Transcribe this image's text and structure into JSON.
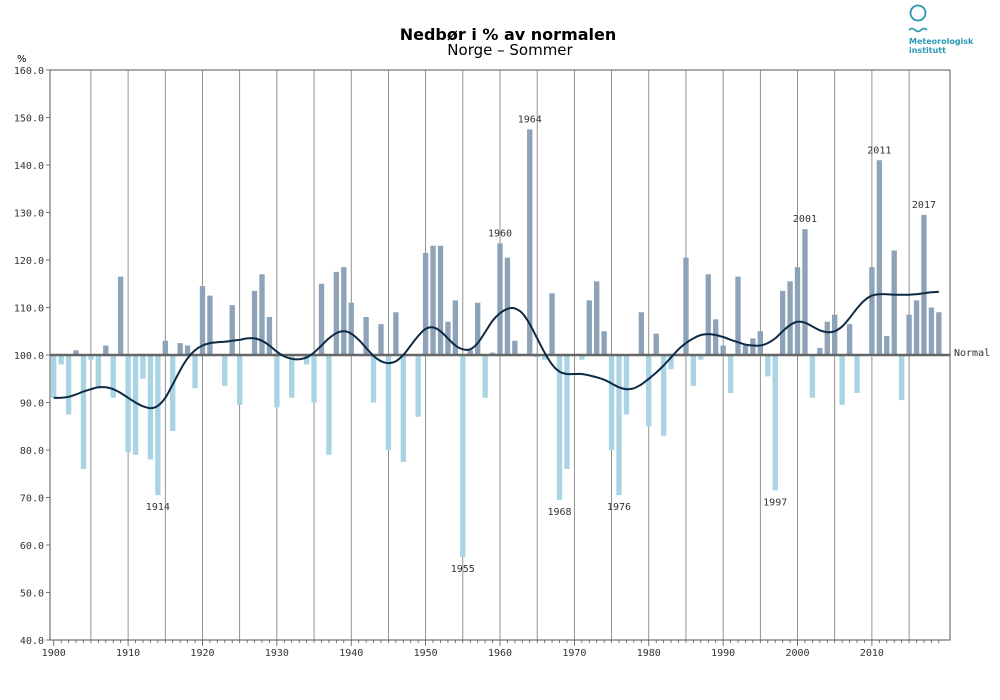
{
  "logo": {
    "line1": "Meteorologisk",
    "line2": "institutt",
    "color": "#2a98b5"
  },
  "chart_data": {
    "type": "bar",
    "title": "Nedbør i % av normalen",
    "subtitle": "Norge – Sommer",
    "ylabel": "%",
    "ylim": [
      40,
      160
    ],
    "yticks": [
      "40.0",
      "50.0",
      "60.0",
      "70.0",
      "80.0",
      "90.0",
      "100.0",
      "110.0",
      "120.0",
      "130.0",
      "140.0",
      "150.0",
      "160.0"
    ],
    "xticks": [
      "1900",
      "1910",
      "1920",
      "1930",
      "1940",
      "1950",
      "1960",
      "1970",
      "1980",
      "1990",
      "2000",
      "2010"
    ],
    "normal_label": "Normal",
    "baseline": 100,
    "colors": {
      "above": "#8fa3b8",
      "below": "#a9d4e4",
      "trend": "#0d2a45",
      "normal": "#666666"
    },
    "years": [
      1900,
      1901,
      1902,
      1903,
      1904,
      1905,
      1906,
      1907,
      1908,
      1909,
      1910,
      1911,
      1912,
      1913,
      1914,
      1915,
      1916,
      1917,
      1918,
      1919,
      1920,
      1921,
      1922,
      1923,
      1924,
      1925,
      1926,
      1927,
      1928,
      1929,
      1930,
      1931,
      1932,
      1933,
      1934,
      1935,
      1936,
      1937,
      1938,
      1939,
      1940,
      1941,
      1942,
      1943,
      1944,
      1945,
      1946,
      1947,
      1948,
      1949,
      1950,
      1951,
      1952,
      1953,
      1954,
      1955,
      1956,
      1957,
      1958,
      1959,
      1960,
      1961,
      1962,
      1963,
      1964,
      1965,
      1966,
      1967,
      1968,
      1969,
      1970,
      1971,
      1972,
      1973,
      1974,
      1975,
      1976,
      1977,
      1978,
      1979,
      1980,
      1981,
      1982,
      1983,
      1984,
      1985,
      1986,
      1987,
      1988,
      1989,
      1990,
      1991,
      1992,
      1993,
      1994,
      1995,
      1996,
      1997,
      1998,
      1999,
      2000,
      2001,
      2002,
      2003,
      2004,
      2005,
      2006,
      2007,
      2008,
      2009,
      2010,
      2011,
      2012,
      2013,
      2014,
      2015,
      2016,
      2017,
      2018,
      2019
    ],
    "values": [
      91,
      98,
      87.5,
      101,
      76,
      99,
      93,
      102,
      91,
      116.5,
      79.5,
      79,
      95,
      78,
      70.5,
      103,
      84,
      102.5,
      102,
      93,
      114.5,
      112.5,
      100,
      93.5,
      110.5,
      89.5,
      100,
      113.5,
      117,
      108,
      89,
      100,
      91,
      100,
      98,
      90,
      115,
      79,
      117.5,
      118.5,
      111,
      100,
      108,
      90,
      106.5,
      80,
      109,
      77.5,
      100,
      87,
      121.5,
      123,
      123,
      107,
      111.5,
      57.5,
      101,
      111,
      91,
      100.5,
      123.5,
      120.5,
      103,
      100,
      147.5,
      99.5,
      99,
      113,
      69.5,
      76,
      100,
      99,
      111.5,
      115.5,
      105,
      80,
      70.5,
      87.5,
      100,
      109,
      85,
      104.5,
      83,
      97,
      100,
      120.5,
      93.5,
      99,
      117,
      107.5,
      102,
      92,
      116.5,
      102,
      103.5,
      105,
      95.5,
      71.5,
      113.5,
      115.5,
      118.5,
      126.5,
      91,
      101.5,
      107,
      108.5,
      89.5,
      106.5,
      92,
      100,
      118.5,
      141,
      104,
      122,
      90.5,
      108.5,
      111.5,
      129.5,
      110,
      109
    ],
    "trend": [
      [
        1900,
        91
      ],
      [
        1901,
        91
      ],
      [
        1902,
        91.2
      ],
      [
        1903,
        91.7
      ],
      [
        1904,
        92.3
      ],
      [
        1905,
        92.8
      ],
      [
        1906,
        93.2
      ],
      [
        1907,
        93.2
      ],
      [
        1908,
        92.8
      ],
      [
        1909,
        92
      ],
      [
        1910,
        91
      ],
      [
        1911,
        90
      ],
      [
        1912,
        89.2
      ],
      [
        1913,
        88.8
      ],
      [
        1914,
        89.3
      ],
      [
        1915,
        91
      ],
      [
        1916,
        93.8
      ],
      [
        1917,
        96.8
      ],
      [
        1918,
        99.3
      ],
      [
        1919,
        101
      ],
      [
        1920,
        102
      ],
      [
        1921,
        102.5
      ],
      [
        1922,
        102.7
      ],
      [
        1923,
        102.8
      ],
      [
        1924,
        103
      ],
      [
        1925,
        103.2
      ],
      [
        1926,
        103.5
      ],
      [
        1927,
        103.5
      ],
      [
        1928,
        103
      ],
      [
        1929,
        102
      ],
      [
        1930,
        100.7
      ],
      [
        1931,
        99.7
      ],
      [
        1932,
        99.2
      ],
      [
        1933,
        99.1
      ],
      [
        1934,
        99.5
      ],
      [
        1935,
        100.5
      ],
      [
        1936,
        102
      ],
      [
        1937,
        103.5
      ],
      [
        1938,
        104.6
      ],
      [
        1939,
        105
      ],
      [
        1940,
        104.5
      ],
      [
        1941,
        103.2
      ],
      [
        1942,
        101.5
      ],
      [
        1943,
        99.8
      ],
      [
        1944,
        98.7
      ],
      [
        1945,
        98.3
      ],
      [
        1946,
        98.7
      ],
      [
        1947,
        100
      ],
      [
        1948,
        102
      ],
      [
        1949,
        104
      ],
      [
        1950,
        105.5
      ],
      [
        1951,
        105.8
      ],
      [
        1952,
        105
      ],
      [
        1953,
        103.5
      ],
      [
        1954,
        102
      ],
      [
        1955,
        101.2
      ],
      [
        1956,
        101.2
      ],
      [
        1957,
        102.5
      ],
      [
        1958,
        104.8
      ],
      [
        1959,
        107.2
      ],
      [
        1960,
        108.8
      ],
      [
        1961,
        109.7
      ],
      [
        1962,
        109.8
      ],
      [
        1963,
        108.8
      ],
      [
        1964,
        106.5
      ],
      [
        1965,
        103.5
      ],
      [
        1966,
        100.5
      ],
      [
        1967,
        98
      ],
      [
        1968,
        96.5
      ],
      [
        1969,
        96
      ],
      [
        1970,
        96
      ],
      [
        1971,
        96
      ],
      [
        1972,
        95.7
      ],
      [
        1973,
        95.3
      ],
      [
        1974,
        94.8
      ],
      [
        1975,
        94
      ],
      [
        1976,
        93.2
      ],
      [
        1977,
        92.8
      ],
      [
        1978,
        93
      ],
      [
        1979,
        93.8
      ],
      [
        1980,
        95
      ],
      [
        1981,
        96.3
      ],
      [
        1982,
        97.8
      ],
      [
        1983,
        99.5
      ],
      [
        1984,
        101.2
      ],
      [
        1985,
        102.5
      ],
      [
        1986,
        103.5
      ],
      [
        1987,
        104.2
      ],
      [
        1988,
        104.4
      ],
      [
        1989,
        104.2
      ],
      [
        1990,
        103.8
      ],
      [
        1991,
        103.2
      ],
      [
        1992,
        102.7
      ],
      [
        1993,
        102.2
      ],
      [
        1994,
        102
      ],
      [
        1995,
        102
      ],
      [
        1996,
        102.5
      ],
      [
        1997,
        103.5
      ],
      [
        1998,
        105
      ],
      [
        1999,
        106.3
      ],
      [
        2000,
        107
      ],
      [
        2001,
        106.8
      ],
      [
        2002,
        106
      ],
      [
        2003,
        105.2
      ],
      [
        2004,
        104.8
      ],
      [
        2005,
        105
      ],
      [
        2006,
        106
      ],
      [
        2007,
        107.8
      ],
      [
        2008,
        109.8
      ],
      [
        2009,
        111.5
      ],
      [
        2010,
        112.5
      ],
      [
        2011,
        112.8
      ],
      [
        2012,
        112.8
      ],
      [
        2013,
        112.7
      ],
      [
        2014,
        112.7
      ],
      [
        2015,
        112.7
      ],
      [
        2016,
        112.8
      ],
      [
        2017,
        113
      ],
      [
        2018,
        113.2
      ],
      [
        2019,
        113.3
      ]
    ],
    "annotations": [
      {
        "year": 1914,
        "label": "1914",
        "pos": "below"
      },
      {
        "year": 1955,
        "label": "1955",
        "pos": "below"
      },
      {
        "year": 1960,
        "label": "1960",
        "pos": "above"
      },
      {
        "year": 1964,
        "label": "1964",
        "pos": "above"
      },
      {
        "year": 1968,
        "label": "1968",
        "pos": "below"
      },
      {
        "year": 1976,
        "label": "1976",
        "pos": "below"
      },
      {
        "year": 1997,
        "label": "1997",
        "pos": "below"
      },
      {
        "year": 2001,
        "label": "2001",
        "pos": "above"
      },
      {
        "year": 2011,
        "label": "2011",
        "pos": "above"
      },
      {
        "year": 2017,
        "label": "2017",
        "pos": "above"
      }
    ]
  }
}
